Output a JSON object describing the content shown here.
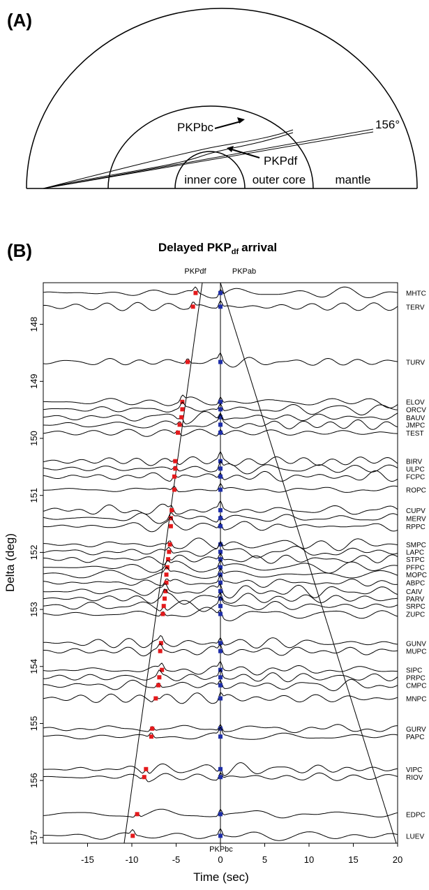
{
  "panel_a": {
    "label": "(A)",
    "angle_label": "156°",
    "ray_labels": [
      "PKPbc",
      "PKPdf"
    ],
    "region_labels": [
      "inner core",
      "outer core",
      "mantle"
    ]
  },
  "panel_b": {
    "label": "(B)",
    "title": "Delayed PKP",
    "title_sub": "df",
    "title_end": "arrival",
    "phase_labels": [
      "PKPdf",
      "PKPab"
    ],
    "bottom_phase_label": "PKPbc",
    "x_label": "Time (sec)",
    "y_label": "Delta  (deg)",
    "xlim": [
      -20,
      20
    ],
    "xticks": [
      -15,
      -10,
      -5,
      0,
      5,
      10,
      15,
      20
    ],
    "ylim": [
      147.27,
      157.1
    ],
    "yticks": [
      148,
      149,
      150,
      151,
      152,
      153,
      154,
      155,
      156,
      157
    ],
    "stations": [
      {
        "name": "MHTC",
        "delta": 147.45,
        "pkpdf": -2.8
      },
      {
        "name": "TERV",
        "delta": 147.69,
        "pkpdf": -3.1
      },
      {
        "name": "TURV",
        "delta": 148.66,
        "pkpdf": -3.7
      },
      {
        "name": "ELOV",
        "delta": 149.36,
        "pkpdf": -4.3
      },
      {
        "name": "ORCV",
        "delta": 149.49,
        "pkpdf": -4.3
      },
      {
        "name": "BAUV",
        "delta": 149.63,
        "pkpdf": -4.4
      },
      {
        "name": "JMPC",
        "delta": 149.76,
        "pkpdf": -4.6
      },
      {
        "name": "TEST",
        "delta": 149.9,
        "pkpdf": -4.8
      },
      {
        "name": "BIRV",
        "delta": 150.4,
        "pkpdf": -5.1
      },
      {
        "name": "ULPC",
        "delta": 150.53,
        "pkpdf": -5.1
      },
      {
        "name": "FCPC",
        "delta": 150.67,
        "pkpdf": -5.2
      },
      {
        "name": "ROPC",
        "delta": 150.9,
        "pkpdf": -5.2
      },
      {
        "name": "CUPV",
        "delta": 151.26,
        "pkpdf": -5.5
      },
      {
        "name": "MERV",
        "delta": 151.4,
        "pkpdf": -5.6
      },
      {
        "name": "RPPC",
        "delta": 151.54,
        "pkpdf": -5.6
      },
      {
        "name": "SMPC",
        "delta": 151.86,
        "pkpdf": -5.7
      },
      {
        "name": "LAPC",
        "delta": 151.99,
        "pkpdf": -5.8
      },
      {
        "name": "STPC",
        "delta": 152.12,
        "pkpdf": -5.9
      },
      {
        "name": "PFPC",
        "delta": 152.26,
        "pkpdf": -6.0
      },
      {
        "name": "MOPC",
        "delta": 152.39,
        "pkpdf": -6.1
      },
      {
        "name": "ABPC",
        "delta": 152.53,
        "pkpdf": -6.1
      },
      {
        "name": "CAIV",
        "delta": 152.68,
        "pkpdf": -6.2
      },
      {
        "name": "PARV",
        "delta": 152.81,
        "pkpdf": -6.3
      },
      {
        "name": "SRPC",
        "delta": 152.94,
        "pkpdf": -6.4
      },
      {
        "name": "ZUPC",
        "delta": 153.08,
        "pkpdf": -6.5
      },
      {
        "name": "GUNV",
        "delta": 153.59,
        "pkpdf": -6.7
      },
      {
        "name": "MUPC",
        "delta": 153.73,
        "pkpdf": -6.8
      },
      {
        "name": "SIPC",
        "delta": 154.06,
        "pkpdf": -6.6
      },
      {
        "name": "PRPC",
        "delta": 154.19,
        "pkpdf": -6.9
      },
      {
        "name": "CMPC",
        "delta": 154.33,
        "pkpdf": -7.0
      },
      {
        "name": "MNPC",
        "delta": 154.56,
        "pkpdf": -7.3
      },
      {
        "name": "GURV",
        "delta": 155.09,
        "pkpdf": -7.7
      },
      {
        "name": "PAPC",
        "delta": 155.23,
        "pkpdf": -7.8
      },
      {
        "name": "VIPC",
        "delta": 155.8,
        "pkpdf": -8.4
      },
      {
        "name": "RIOV",
        "delta": 155.94,
        "pkpdf": -8.6
      },
      {
        "name": "EDPC",
        "delta": 156.59,
        "pkpdf": -9.4
      },
      {
        "name": "LUEV",
        "delta": 156.97,
        "pkpdf": -9.9
      }
    ]
  }
}
